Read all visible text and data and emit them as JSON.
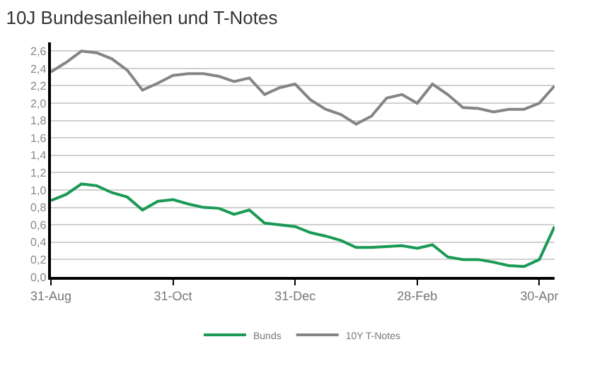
{
  "chart_data": {
    "type": "line",
    "title": "10J Bundesanleihen und T-Notes",
    "categories": [
      "31-Aug",
      null,
      null,
      null,
      null,
      null,
      null,
      null,
      "31-Oct",
      null,
      null,
      null,
      null,
      null,
      null,
      null,
      "31-Dec",
      null,
      null,
      null,
      null,
      null,
      null,
      null,
      "28-Feb",
      null,
      null,
      null,
      null,
      null,
      null,
      null,
      "30-Apr",
      null
    ],
    "series": [
      {
        "name": "Bunds",
        "color": "#1a9a55",
        "values": [
          0.88,
          0.95,
          1.07,
          1.05,
          0.97,
          0.92,
          0.77,
          0.87,
          0.89,
          0.84,
          0.8,
          0.79,
          0.72,
          0.77,
          0.62,
          0.6,
          0.58,
          0.51,
          0.47,
          0.42,
          0.34,
          0.34,
          0.35,
          0.36,
          0.33,
          0.37,
          0.23,
          0.2,
          0.2,
          0.17,
          0.13,
          0.12,
          0.2,
          0.58
        ]
      },
      {
        "name": "10Y T-Notes",
        "color": "#858585",
        "values": [
          2.36,
          2.47,
          2.6,
          2.58,
          2.51,
          2.38,
          2.15,
          2.23,
          2.32,
          2.34,
          2.34,
          2.31,
          2.25,
          2.29,
          2.1,
          2.18,
          2.22,
          2.04,
          1.93,
          1.87,
          1.76,
          1.85,
          2.06,
          2.1,
          2.0,
          2.22,
          2.1,
          1.95,
          1.94,
          1.9,
          1.93,
          1.93,
          2.0,
          2.2
        ]
      }
    ],
    "ylim": [
      0,
      2.7
    ],
    "yticks": [
      {
        "value": 0,
        "label": "0,0"
      },
      {
        "value": 0.2,
        "label": "0,2"
      },
      {
        "value": 0.4,
        "label": "0,4"
      },
      {
        "value": 0.6,
        "label": "0,6"
      },
      {
        "value": 0.8,
        "label": "0,8"
      },
      {
        "value": 1.0,
        "label": "1,0"
      },
      {
        "value": 1.2,
        "label": "1,2"
      },
      {
        "value": 1.4,
        "label": "1,4"
      },
      {
        "value": 1.6,
        "label": "1,6"
      },
      {
        "value": 1.8,
        "label": "1,8"
      },
      {
        "value": 2.0,
        "label": "2,0"
      },
      {
        "value": 2.2,
        "label": "2,2"
      },
      {
        "value": 2.4,
        "label": "2,4"
      },
      {
        "value": 2.6,
        "label": "2,6"
      }
    ],
    "grid": "y",
    "legend": "bottom"
  }
}
